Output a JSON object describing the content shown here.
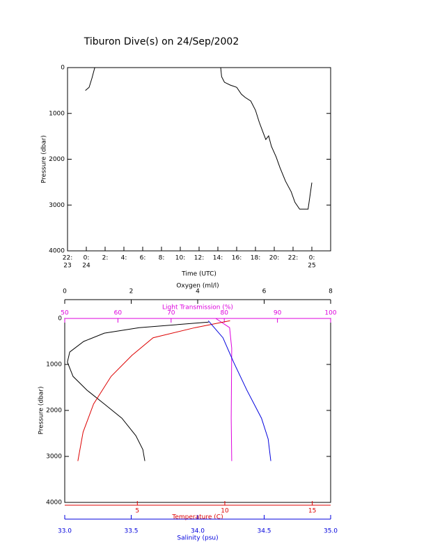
{
  "chart_data": [
    {
      "type": "line",
      "title": "Tiburon Dive(s) on 24/Sep/2002",
      "x_label": "Time (UTC)",
      "y_label": "Pressure (dbar)",
      "xlim": [
        -2,
        26
      ],
      "xticks": [
        {
          "value": -2,
          "label": "22:"
        },
        {
          "value": 0,
          "label": "0:"
        },
        {
          "value": 2,
          "label": "2:"
        },
        {
          "value": 4,
          "label": "4:"
        },
        {
          "value": 6,
          "label": "6:"
        },
        {
          "value": 8,
          "label": "8:"
        },
        {
          "value": 10,
          "label": "10:"
        },
        {
          "value": 12,
          "label": "12:"
        },
        {
          "value": 14,
          "label": "14:"
        },
        {
          "value": 16,
          "label": "16:"
        },
        {
          "value": 18,
          "label": "18:"
        },
        {
          "value": 20,
          "label": "20:"
        },
        {
          "value": 22,
          "label": "22:"
        },
        {
          "value": 24,
          "label": "0:"
        }
      ],
      "xtick_days": [
        {
          "value": -2,
          "label": "23"
        },
        {
          "value": 0,
          "label": "24"
        },
        {
          "value": 24,
          "label": "25"
        }
      ],
      "ylim": [
        0,
        4000
      ],
      "y_inverted": true,
      "yticks": [
        0,
        1000,
        2000,
        3000,
        4000
      ],
      "series": [
        {
          "color": "#000000",
          "x": [
            -0.1,
            0.3,
            0.6,
            0.9,
            14.3,
            14.4,
            14.7,
            15.3,
            16.0,
            16.5,
            16.9,
            17.5,
            18.0,
            18.4,
            18.8,
            19.1,
            19.4,
            19.7,
            20.2,
            20.6,
            21.2,
            21.8,
            22.2,
            22.7,
            23.6,
            24.0
          ],
          "values": [
            500,
            430,
            230,
            0,
            0,
            200,
            320,
            380,
            430,
            580,
            650,
            730,
            930,
            1190,
            1410,
            1570,
            1490,
            1720,
            1950,
            2180,
            2480,
            2710,
            2940,
            3090,
            3090,
            2510
          ]
        }
      ]
    },
    {
      "type": "profile",
      "y_label": "Pressure (dbar)",
      "ylim": [
        0,
        4000
      ],
      "y_inverted": true,
      "yticks": [
        0,
        1000,
        2000,
        3000,
        4000
      ],
      "x_axes": [
        {
          "label": "Oxygen (ml/l)",
          "color": "#000000",
          "position": "top",
          "lim": [
            0,
            8
          ],
          "ticks": [
            0,
            2,
            4,
            6,
            8
          ]
        },
        {
          "label": "Light Transmission (%)",
          "color": "#dd00dd",
          "position": "top-inner",
          "lim": [
            50,
            100
          ],
          "ticks": [
            50,
            60,
            70,
            80,
            90,
            100
          ]
        },
        {
          "label": "Temperature (C)",
          "color": "#dd0000",
          "position": "bottom",
          "lim": [
            0.85,
            16.05
          ],
          "ticks": [
            5,
            10,
            15
          ]
        },
        {
          "label": "Salinity (psu)",
          "color": "#0000dd",
          "position": "bottom-outer",
          "lim": [
            33,
            35
          ],
          "ticks": [
            {
              "value": 33,
              "label": "33.0"
            },
            {
              "value": 33.5,
              "label": "33.5"
            },
            {
              "value": 34,
              "label": "34.0"
            },
            {
              "value": 34.5,
              "label": "34.5"
            },
            {
              "value": 35,
              "label": "35.0"
            }
          ]
        }
      ],
      "series": [
        {
          "x_axis": 0,
          "color": "#000000",
          "x": [
            4.33,
            2.24,
            1.19,
            0.57,
            0.15,
            0.08,
            0.25,
            0.67,
            1.19,
            1.72,
            2.14,
            2.35,
            2.41
          ],
          "values": [
            80,
            200,
            320,
            500,
            730,
            950,
            1260,
            1560,
            1860,
            2170,
            2550,
            2850,
            3100
          ]
        },
        {
          "x_axis": 1,
          "color": "#dd00dd",
          "x": [
            78.4,
            81.0,
            81.4,
            81.3,
            81.4
          ],
          "values": [
            0,
            200,
            650,
            2170,
            3100
          ]
        },
        {
          "x_axis": 2,
          "color": "#dd0000",
          "x": [
            10.3,
            8.3,
            5.9,
            4.7,
            3.5,
            2.5,
            1.9,
            1.6
          ],
          "values": [
            50,
            200,
            420,
            800,
            1260,
            1860,
            2470,
            3100
          ]
        },
        {
          "x_axis": 3,
          "color": "#0000dd",
          "x": [
            34.08,
            34.19,
            34.27,
            34.37,
            34.48,
            34.53,
            34.55
          ],
          "values": [
            50,
            420,
            950,
            1560,
            2170,
            2620,
            3100
          ]
        }
      ]
    }
  ]
}
